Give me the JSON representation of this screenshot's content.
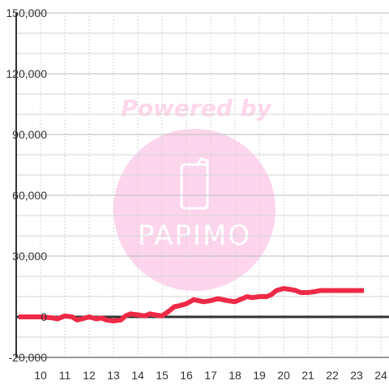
{
  "chart_data": {
    "type": "line",
    "x_ticks": [
      "10",
      "11",
      "12",
      "13",
      "14",
      "15",
      "16",
      "17",
      "18",
      "19",
      "20",
      "21",
      "22",
      "23",
      "24"
    ],
    "y_ticks": [
      "150,000",
      "120,000",
      "90,000",
      "60,000",
      "30,000",
      "0",
      "-20,000"
    ],
    "y_tick_values": [
      150000,
      120000,
      90000,
      60000,
      30000,
      0,
      -20000
    ],
    "xlim": [
      9.1,
      24.3
    ],
    "ylim": [
      -20000,
      150000
    ],
    "grid": true,
    "series": [
      {
        "color": "#ee2a47",
        "x": [
          9.1,
          10.0,
          10.5,
          10.7,
          11.0,
          11.3,
          11.5,
          11.7,
          12.0,
          12.3,
          12.5,
          12.7,
          13.0,
          13.3,
          13.5,
          13.7,
          14.0,
          14.3,
          14.5,
          14.7,
          15.0,
          15.3,
          15.5,
          15.7,
          16.0,
          16.3,
          16.5,
          16.7,
          17.0,
          17.3,
          17.5,
          17.7,
          18.0,
          18.3,
          18.5,
          18.7,
          19.0,
          19.3,
          19.5,
          19.7,
          20.0,
          20.3,
          20.5,
          20.7,
          21.0,
          21.3,
          21.5,
          21.7,
          22.0,
          22.5,
          23.0,
          23.3
        ],
        "y": [
          0,
          0,
          -500,
          -1000,
          500,
          0,
          -1500,
          -1000,
          0,
          -1000,
          -500,
          -1500,
          -2000,
          -1500,
          500,
          1500,
          1000,
          500,
          1500,
          1000,
          500,
          3000,
          5000,
          5500,
          6500,
          8500,
          8000,
          7500,
          8000,
          9000,
          8500,
          8000,
          7500,
          9000,
          10000,
          9500,
          10000,
          10000,
          11000,
          13000,
          14000,
          13500,
          13000,
          12000,
          12000,
          12500,
          13000,
          13000,
          13000,
          13000,
          13000,
          13000
        ]
      }
    ]
  },
  "watermark": {
    "text": "Powered by",
    "logo_text": "PAPIMO",
    "circle_color": "#fdd5ec",
    "text_color": "#ffd6ec"
  },
  "colors": {
    "grid_major": "#bbbbbb",
    "grid_minor": "#d6d6d6",
    "axis": "#333333",
    "line": "#ee2a47"
  }
}
